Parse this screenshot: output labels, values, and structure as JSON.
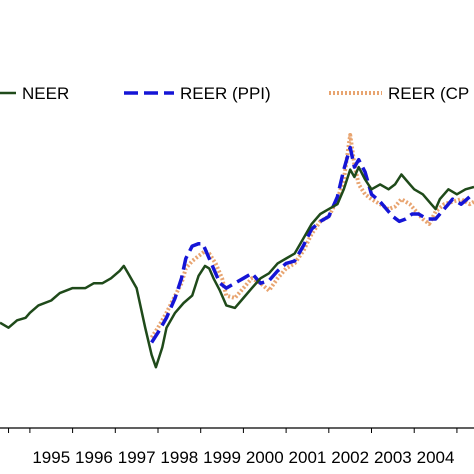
{
  "chart_data": {
    "type": "line",
    "title": "",
    "xlabel": "",
    "ylabel": "",
    "x_ticks": [
      "1995",
      "1996",
      "1997",
      "1998",
      "1999",
      "2000",
      "2001",
      "2002",
      "2003",
      "2004",
      "2"
    ],
    "xlim": [
      1994.3,
      2005.4
    ],
    "ylim": [
      0,
      100
    ],
    "grid": false,
    "legend": {
      "placement": "top",
      "entries": [
        "NEER",
        "REER (PPI)",
        "REER (CP"
      ]
    },
    "series": [
      {
        "name": "NEER",
        "color": "#1f4a1a",
        "style": "solid",
        "x": [
          1994.3,
          1994.5,
          1994.7,
          1994.9,
          1995.0,
          1995.2,
          1995.5,
          1995.7,
          1996.0,
          1996.3,
          1996.5,
          1996.7,
          1996.9,
          1997.1,
          1997.2,
          1997.3,
          1997.5,
          1997.7,
          1997.85,
          1997.95,
          1998.1,
          1998.2,
          1998.4,
          1998.6,
          1998.8,
          1998.95,
          1999.1,
          1999.2,
          1999.3,
          1999.45,
          1999.6,
          1999.8,
          2000.0,
          2000.2,
          2000.4,
          2000.6,
          2000.8,
          2001.0,
          2001.2,
          2001.4,
          2001.6,
          2001.8,
          2002.0,
          2002.2,
          2002.35,
          2002.5,
          2002.6,
          2002.7,
          2002.85,
          2003.0,
          2003.2,
          2003.4,
          2003.55,
          2003.7,
          2003.9,
          2004.0,
          2004.2,
          2004.4,
          2004.5,
          2004.6,
          2004.8,
          2005.0,
          2005.2,
          2005.4
        ],
        "y": [
          24,
          22,
          25,
          26,
          28,
          31,
          33,
          36,
          38,
          38,
          40,
          40,
          42,
          45,
          47,
          44,
          38,
          22,
          11,
          6,
          14,
          22,
          28,
          32,
          35,
          43,
          47,
          46,
          42,
          37,
          31,
          30,
          34,
          38,
          42,
          44,
          48,
          50,
          52,
          58,
          64,
          68,
          70,
          72,
          78,
          86,
          83,
          87,
          82,
          78,
          80,
          78,
          80,
          84,
          80,
          78,
          76,
          72,
          70,
          74,
          78,
          76,
          78,
          79
        ]
      },
      {
        "name": "REER (PPI)",
        "color": "#1515d6",
        "style": "dashed",
        "x": [
          1997.85,
          1998.0,
          1998.2,
          1998.4,
          1998.55,
          1998.65,
          1998.8,
          1998.95,
          1999.05,
          1999.15,
          1999.3,
          1999.45,
          1999.6,
          1999.8,
          2000.0,
          2000.2,
          2000.4,
          2000.6,
          2000.8,
          2001.0,
          2001.2,
          2001.4,
          2001.6,
          2001.8,
          2002.0,
          2002.2,
          2002.35,
          2002.5,
          2002.6,
          2002.7,
          2002.85,
          2003.0,
          2003.2,
          2003.4,
          2003.5,
          2003.65,
          2003.8,
          2003.95,
          2004.1,
          2004.3,
          2004.5,
          2004.7,
          2004.9,
          2005.1,
          2005.3,
          2005.4
        ],
        "y": [
          16,
          20,
          26,
          34,
          42,
          50,
          55,
          56,
          56,
          52,
          46,
          40,
          38,
          40,
          42,
          44,
          40,
          41,
          45,
          48,
          49,
          55,
          62,
          65,
          67,
          75,
          86,
          95,
          87,
          90,
          85,
          76,
          73,
          69,
          67,
          65,
          66,
          68,
          68,
          66,
          66,
          70,
          74,
          72,
          75,
          76
        ]
      },
      {
        "name": "REER (CP",
        "color": "#e8a470",
        "style": "dotted",
        "x": [
          1997.85,
          1998.0,
          1998.2,
          1998.4,
          1998.55,
          1998.65,
          1998.8,
          1998.95,
          1999.1,
          1999.2,
          1999.35,
          1999.5,
          1999.6,
          1999.8,
          2000.0,
          2000.2,
          2000.4,
          2000.6,
          2000.8,
          2001.0,
          2001.2,
          2001.4,
          2001.6,
          2001.8,
          2002.0,
          2002.2,
          2002.35,
          2002.5,
          2002.6,
          2002.7,
          2002.85,
          2003.0,
          2003.2,
          2003.4,
          2003.55,
          2003.7,
          2003.9,
          2004.0,
          2004.2,
          2004.35,
          2004.5,
          2004.7,
          2004.9,
          2005.1,
          2005.3,
          2005.4
        ],
        "y": [
          18,
          22,
          28,
          35,
          40,
          46,
          49,
          51,
          53,
          52,
          48,
          42,
          35,
          34,
          38,
          42,
          40,
          37,
          42,
          46,
          48,
          53,
          60,
          65,
          67,
          74,
          82,
          100,
          88,
          80,
          76,
          74,
          72,
          70,
          71,
          74,
          72,
          70,
          66,
          64,
          69,
          72,
          73,
          74,
          72,
          73
        ]
      }
    ]
  }
}
